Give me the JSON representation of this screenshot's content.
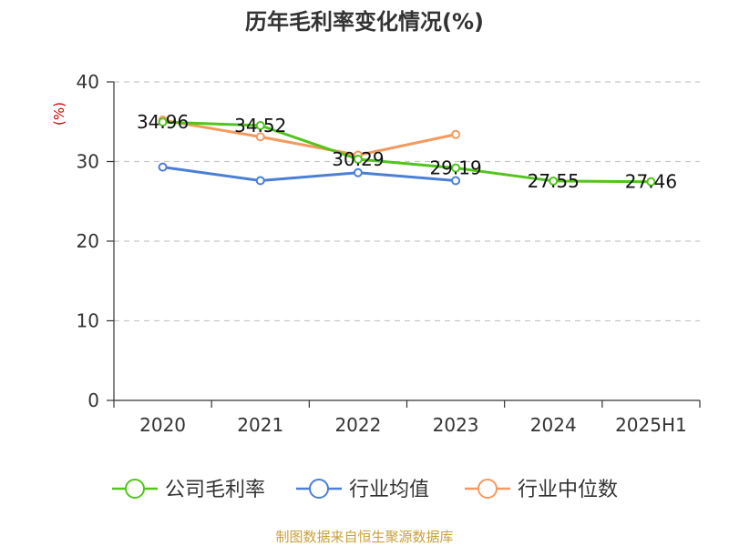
{
  "chart_data": {
    "type": "line",
    "title": "历年毛利率变化情况(%)",
    "ylabel": "(%)",
    "xlabel": "",
    "categories": [
      "2020",
      "2021",
      "2022",
      "2023",
      "2024",
      "2025H1"
    ],
    "ylim": [
      0,
      40
    ],
    "yticks": [
      0,
      10,
      20,
      30,
      40
    ],
    "grid": true,
    "legend_position": "bottom",
    "series": [
      {
        "name": "公司毛利率",
        "color": "#52c41a",
        "values": [
          34.96,
          34.52,
          30.29,
          29.19,
          27.55,
          27.46
        ],
        "labels": [
          "34.96",
          "34.52",
          "30.29",
          "29.19",
          "27.55",
          "27.46"
        ]
      },
      {
        "name": "行业均值",
        "color": "#4a7fd4",
        "values": [
          29.3,
          27.6,
          28.6,
          27.6,
          null,
          null
        ]
      },
      {
        "name": "行业中位数",
        "color": "#f39a5e",
        "values": [
          35.2,
          33.1,
          30.8,
          33.4,
          null,
          null
        ]
      }
    ],
    "source": "制图数据来自恒生聚源数据库"
  }
}
